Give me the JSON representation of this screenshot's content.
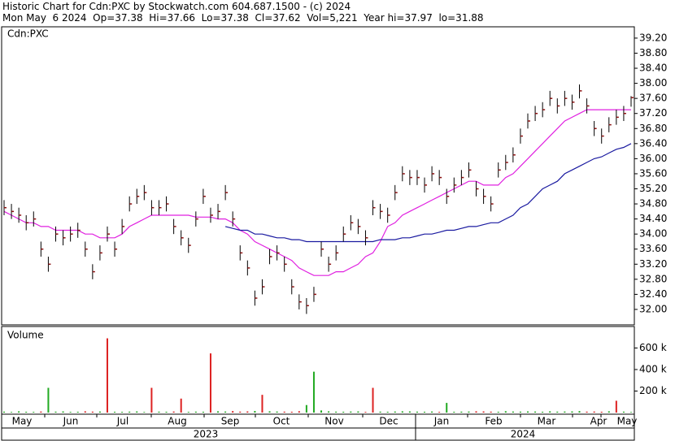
{
  "header": {
    "line1": "Historic Chart for Cdn:PXC by Stockwatch.com 604.687.1500 - (c) 2024",
    "line2": "Mon May  6 2024  Op=37.38  Hi=37.66  Lo=37.38  Cl=37.62  Vol=5,221  Year hi=37.97  lo=31.88"
  },
  "chart_data": {
    "type": "ohlc",
    "symbol_label": "Cdn:PXC",
    "bar_color": "#8b1010",
    "high": [
      34.9,
      34.8,
      34.7,
      34.5,
      34.6,
      33.8,
      33.4,
      34.2,
      34.1,
      34.2,
      34.3,
      33.8,
      33.2,
      33.7,
      34.2,
      33.8,
      34.4,
      35.0,
      35.2,
      35.3,
      34.9,
      34.9,
      35.0,
      34.4,
      34.1,
      33.9,
      34.6,
      35.2,
      34.7,
      34.8,
      35.3,
      34.6,
      33.7,
      33.3,
      32.5,
      32.8,
      33.6,
      33.7,
      33.4,
      32.8,
      32.4,
      32.3,
      32.6,
      33.8,
      33.4,
      33.7,
      34.2,
      34.5,
      34.4,
      34.1,
      34.9,
      34.8,
      34.7,
      35.3,
      35.8,
      35.7,
      35.7,
      35.5,
      35.8,
      35.7,
      35.2,
      35.5,
      35.7,
      35.9,
      35.4,
      35.2,
      35.0,
      35.9,
      36.1,
      36.3,
      36.8,
      37.2,
      37.4,
      37.5,
      37.8,
      37.6,
      37.8,
      37.7,
      37.97,
      37.6,
      37.0,
      36.8,
      37.1,
      37.3,
      37.4,
      37.66
    ],
    "low": [
      34.5,
      34.4,
      34.3,
      34.1,
      34.2,
      33.4,
      33.0,
      33.8,
      33.7,
      33.8,
      33.9,
      33.4,
      32.8,
      33.3,
      33.8,
      33.4,
      34.0,
      34.6,
      34.8,
      34.9,
      34.5,
      34.5,
      34.6,
      34.0,
      33.7,
      33.5,
      34.2,
      34.8,
      34.3,
      34.4,
      34.9,
      34.2,
      33.3,
      32.9,
      32.1,
      32.4,
      33.2,
      33.3,
      33.0,
      32.4,
      32.0,
      31.88,
      32.2,
      33.4,
      33.0,
      33.3,
      33.8,
      34.1,
      34.0,
      33.7,
      34.5,
      34.4,
      34.3,
      34.9,
      35.4,
      35.3,
      35.3,
      35.1,
      35.4,
      35.3,
      34.8,
      35.1,
      35.3,
      35.5,
      35.0,
      34.8,
      34.6,
      35.5,
      35.7,
      35.9,
      36.4,
      36.8,
      37.0,
      37.1,
      37.4,
      37.2,
      37.4,
      37.3,
      37.6,
      37.2,
      36.6,
      36.4,
      36.7,
      36.9,
      37.0,
      37.38
    ],
    "close": [
      34.7,
      34.6,
      34.5,
      34.3,
      34.4,
      33.6,
      33.2,
      34.0,
      33.9,
      34.0,
      34.1,
      33.6,
      33.0,
      33.5,
      34.0,
      33.6,
      34.2,
      34.8,
      35.0,
      35.1,
      34.7,
      34.7,
      34.8,
      34.2,
      33.9,
      33.7,
      34.4,
      35.0,
      34.5,
      34.6,
      35.1,
      34.4,
      33.5,
      33.1,
      32.3,
      32.6,
      33.4,
      33.5,
      33.2,
      32.6,
      32.2,
      32.1,
      32.4,
      33.6,
      33.2,
      33.5,
      34.0,
      34.3,
      34.2,
      33.9,
      34.7,
      34.6,
      34.5,
      35.1,
      35.6,
      35.5,
      35.5,
      35.3,
      35.6,
      35.5,
      35.0,
      35.3,
      35.5,
      35.7,
      35.2,
      35.0,
      34.8,
      35.7,
      35.9,
      36.1,
      36.6,
      37.0,
      37.2,
      37.3,
      37.6,
      37.4,
      37.6,
      37.5,
      37.8,
      37.4,
      36.8,
      36.6,
      36.9,
      37.1,
      37.2,
      37.62
    ],
    "moving_averages": [
      {
        "color": "#e020e0",
        "values": [
          34.6,
          34.5,
          34.4,
          34.3,
          34.3,
          34.2,
          34.2,
          34.1,
          34.1,
          34.1,
          34.1,
          34.0,
          34.0,
          33.9,
          33.9,
          33.9,
          34.0,
          34.2,
          34.3,
          34.4,
          34.5,
          34.5,
          34.5,
          34.5,
          34.5,
          34.5,
          34.45,
          34.45,
          34.45,
          34.4,
          34.4,
          34.3,
          34.1,
          34.0,
          33.8,
          33.7,
          33.6,
          33.5,
          33.4,
          33.3,
          33.1,
          33.0,
          32.9,
          32.9,
          32.9,
          33.0,
          33.0,
          33.1,
          33.2,
          33.4,
          33.5,
          33.8,
          34.2,
          34.3,
          34.5,
          34.6,
          34.7,
          34.8,
          34.9,
          35.0,
          35.1,
          35.2,
          35.3,
          35.4,
          35.4,
          35.3,
          35.3,
          35.3,
          35.5,
          35.6,
          35.8,
          36.0,
          36.2,
          36.4,
          36.6,
          36.8,
          37.0,
          37.1,
          37.2,
          37.3,
          37.3,
          37.3,
          37.3,
          37.3,
          37.3,
          37.3
        ]
      },
      {
        "color": "#1a1aa0",
        "values": [
          null,
          null,
          null,
          null,
          null,
          null,
          null,
          null,
          null,
          null,
          null,
          null,
          null,
          null,
          null,
          null,
          null,
          null,
          null,
          null,
          null,
          null,
          null,
          null,
          null,
          null,
          null,
          null,
          null,
          null,
          34.2,
          34.15,
          34.1,
          34.1,
          34.0,
          34.0,
          33.95,
          33.9,
          33.9,
          33.85,
          33.85,
          33.8,
          33.8,
          33.8,
          33.8,
          33.8,
          33.8,
          33.8,
          33.8,
          33.8,
          33.8,
          33.85,
          33.85,
          33.85,
          33.9,
          33.9,
          33.95,
          34.0,
          34.0,
          34.05,
          34.1,
          34.1,
          34.15,
          34.2,
          34.2,
          34.25,
          34.3,
          34.3,
          34.4,
          34.5,
          34.7,
          34.8,
          35.0,
          35.2,
          35.3,
          35.4,
          35.6,
          35.7,
          35.8,
          35.9,
          36.0,
          36.05,
          36.15,
          36.25,
          36.3,
          36.4
        ]
      }
    ],
    "ylim": [
      31.59,
      39.5
    ],
    "yticks": [
      {
        "value": 32,
        "label": "32.00"
      },
      {
        "value": 32.4,
        "label": "32.40"
      },
      {
        "value": 32.8,
        "label": "32.80"
      },
      {
        "value": 33.2,
        "label": "33.20"
      },
      {
        "value": 33.6,
        "label": "33.60"
      },
      {
        "value": 34,
        "label": "34.00"
      },
      {
        "value": 34.4,
        "label": "34.40"
      },
      {
        "value": 34.8,
        "label": "34.80"
      },
      {
        "value": 35.2,
        "label": "35.20"
      },
      {
        "value": 35.6,
        "label": "35.60"
      },
      {
        "value": 36,
        "label": "36.00"
      },
      {
        "value": 36.4,
        "label": "36.40"
      },
      {
        "value": 36.8,
        "label": "36.80"
      },
      {
        "value": 37.2,
        "label": "37.20"
      },
      {
        "value": 37.6,
        "label": "37.60"
      },
      {
        "value": 38,
        "label": "38.00"
      },
      {
        "value": 38.4,
        "label": "38.40"
      },
      {
        "value": 38.8,
        "label": "38.80"
      },
      {
        "value": 39.2,
        "label": "39.20"
      }
    ],
    "volume": {
      "title": "Volume",
      "values": [
        9000,
        6000,
        12000,
        8000,
        7000,
        10000,
        230000,
        9000,
        11000,
        7000,
        8000,
        12000,
        9000,
        10000,
        690000,
        8000,
        7000,
        9000,
        11000,
        6000,
        230000,
        9000,
        8000,
        10000,
        130000,
        7000,
        9000,
        8000,
        550000,
        12000,
        10000,
        14000,
        9000,
        11000,
        15000,
        165000,
        12000,
        10000,
        9000,
        8000,
        13000,
        70000,
        380000,
        20000,
        12000,
        9000,
        8000,
        10000,
        11000,
        7000,
        230000,
        9000,
        8000,
        10000,
        12000,
        11000,
        9000,
        8000,
        10000,
        7000,
        90000,
        8000,
        9000,
        10000,
        12000,
        11000,
        9000,
        8000,
        13000,
        10000,
        9000,
        11000,
        10000,
        8000,
        12000,
        9000,
        10000,
        11000,
        14000,
        9000,
        10000,
        8000,
        12000,
        110000,
        9000,
        5221
      ],
      "colors": [
        "#22aa22",
        "#22aa22",
        "#22aa22",
        "#22aa22",
        "#22aa22",
        "#dd2222",
        "#22aa22",
        "#22aa22",
        "#22aa22",
        "#22aa22",
        "#22aa22",
        "#dd2222",
        "#dd2222",
        "#22aa22",
        "#dd2222",
        "#22aa22",
        "#22aa22",
        "#22aa22",
        "#22aa22",
        "#22aa22",
        "#dd2222",
        "#22aa22",
        "#22aa22",
        "#dd2222",
        "#dd2222",
        "#22aa22",
        "#22aa22",
        "#22aa22",
        "#dd2222",
        "#22aa22",
        "#22aa22",
        "#dd2222",
        "#dd2222",
        "#dd2222",
        "#22aa22",
        "#dd2222",
        "#22aa22",
        "#22aa22",
        "#dd2222",
        "#dd2222",
        "#dd2222",
        "#22aa22",
        "#22aa22",
        "#22aa22",
        "#22aa22",
        "#22aa22",
        "#22aa22",
        "#22aa22",
        "#22aa22",
        "#dd2222",
        "#dd2222",
        "#22aa22",
        "#22aa22",
        "#22aa22",
        "#22aa22",
        "#22aa22",
        "#22aa22",
        "#22aa22",
        "#22aa22",
        "#dd2222",
        "#22aa22",
        "#22aa22",
        "#22aa22",
        "#22aa22",
        "#dd2222",
        "#dd2222",
        "#dd2222",
        "#22aa22",
        "#22aa22",
        "#22aa22",
        "#22aa22",
        "#22aa22",
        "#22aa22",
        "#22aa22",
        "#22aa22",
        "#22aa22",
        "#22aa22",
        "#22aa22",
        "#22aa22",
        "#dd2222",
        "#dd2222",
        "#dd2222",
        "#22aa22",
        "#dd2222",
        "#22aa22",
        "#22aa22"
      ],
      "ylim": [
        -15000,
        800000
      ],
      "yticks": [
        {
          "value": 200000,
          "label": "200 k"
        },
        {
          "value": 400000,
          "label": "400 k"
        },
        {
          "value": 600000,
          "label": "600 k"
        }
      ]
    },
    "months": [
      "May",
      "Jun",
      "Jul",
      "Aug",
      "Sep",
      "Oct",
      "Nov",
      "Dec",
      "Jan",
      "Feb",
      "Mar",
      "Apr",
      "May"
    ],
    "years": [
      "2023",
      "2024"
    ]
  }
}
